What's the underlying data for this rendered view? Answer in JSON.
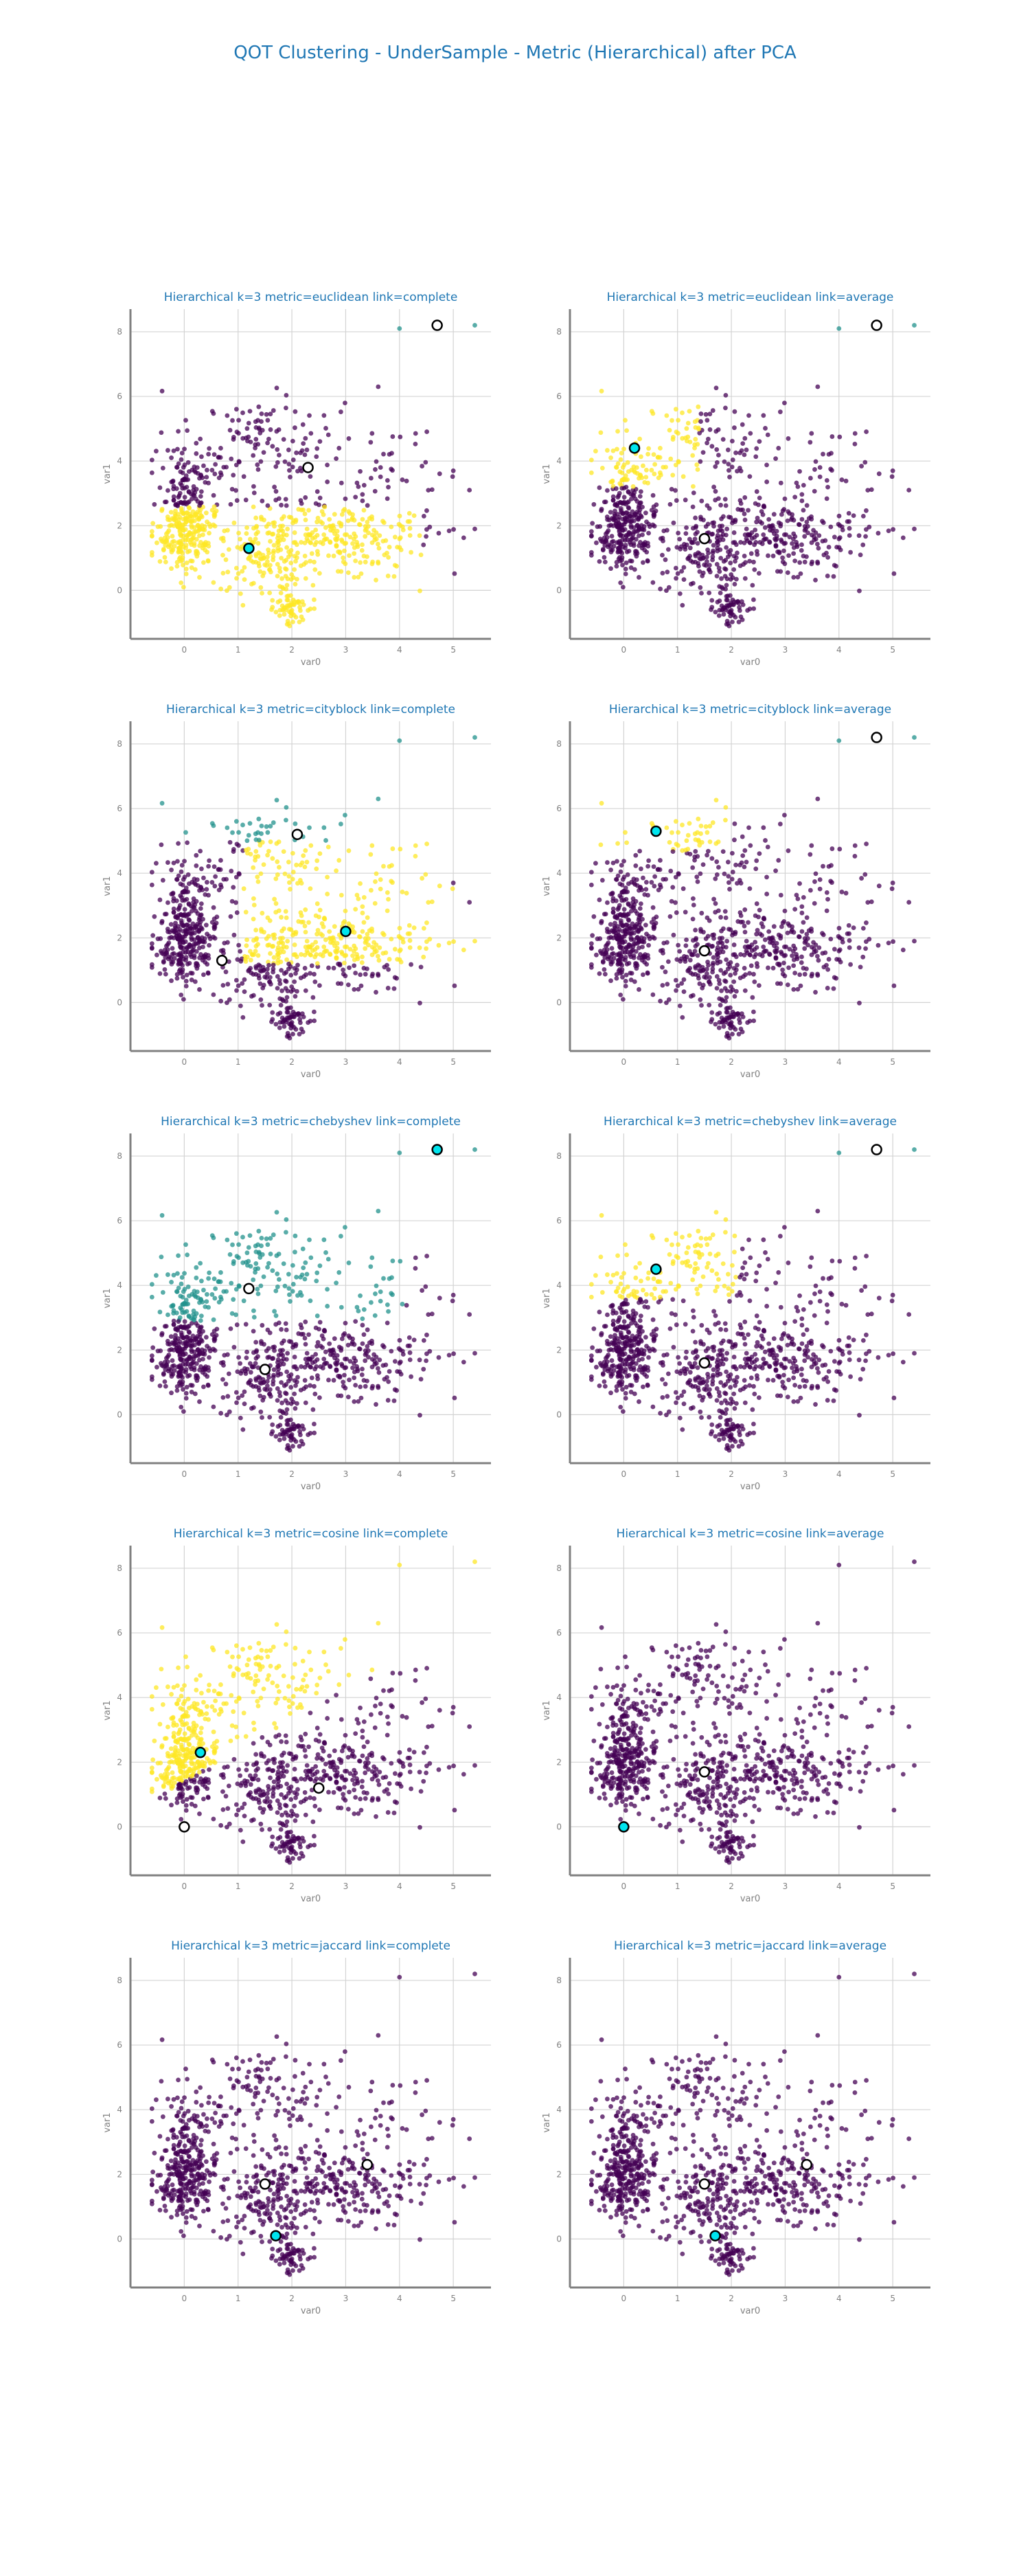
{
  "figure": {
    "title": "QOT Clustering - UnderSample - Metric (Hierarchical) after PCA"
  },
  "palette": {
    "purple": "#440154",
    "teal": "#21918c",
    "yellow": "#fde725",
    "center_cyan": "#00e5ee",
    "center_white": "#ffffff",
    "gridline": "#d3d3d3",
    "axis": "#808080"
  },
  "chart_data": [
    {
      "type": "scatter",
      "title": "Hierarchical k=3 metric=euclidean link=complete",
      "xlabel": "var0",
      "ylabel": "var1",
      "xlim": [
        -1,
        5.7
      ],
      "ylim": [
        -1.5,
        8.7
      ],
      "xticks": [
        0,
        1,
        2,
        3,
        4,
        5
      ],
      "yticks": [
        0,
        2,
        4,
        6,
        8
      ],
      "grid": true,
      "scheme": "euc_complete",
      "centers": [
        {
          "x": 1.2,
          "y": 1.3,
          "color": "cyan"
        },
        {
          "x": 2.3,
          "y": 3.8,
          "color": "white"
        },
        {
          "x": 4.7,
          "y": 8.2,
          "color": "white"
        }
      ]
    },
    {
      "type": "scatter",
      "title": "Hierarchical k=3 metric=euclidean link=average",
      "xlabel": "var0",
      "ylabel": "var1",
      "xlim": [
        -1,
        5.7
      ],
      "ylim": [
        -1.5,
        8.7
      ],
      "xticks": [
        0,
        1,
        2,
        3,
        4,
        5
      ],
      "yticks": [
        0,
        2,
        4,
        6,
        8
      ],
      "grid": true,
      "scheme": "euc_average",
      "centers": [
        {
          "x": 0.2,
          "y": 4.4,
          "color": "cyan"
        },
        {
          "x": 1.5,
          "y": 1.6,
          "color": "white"
        },
        {
          "x": 4.7,
          "y": 8.2,
          "color": "white"
        }
      ]
    },
    {
      "type": "scatter",
      "title": "Hierarchical k=3 metric=cityblock link=complete",
      "xlabel": "var0",
      "ylabel": "var1",
      "xlim": [
        -1,
        5.7
      ],
      "ylim": [
        -1.5,
        8.7
      ],
      "xticks": [
        0,
        1,
        2,
        3,
        4,
        5
      ],
      "yticks": [
        0,
        2,
        4,
        6,
        8
      ],
      "grid": true,
      "scheme": "city_complete",
      "centers": [
        {
          "x": 3.0,
          "y": 2.2,
          "color": "cyan"
        },
        {
          "x": 2.1,
          "y": 5.2,
          "color": "white"
        },
        {
          "x": 0.7,
          "y": 1.3,
          "color": "white"
        }
      ]
    },
    {
      "type": "scatter",
      "title": "Hierarchical k=3 metric=cityblock link=average",
      "xlabel": "var0",
      "ylabel": "var1",
      "xlim": [
        -1,
        5.7
      ],
      "ylim": [
        -1.5,
        8.7
      ],
      "xticks": [
        0,
        1,
        2,
        3,
        4,
        5
      ],
      "yticks": [
        0,
        2,
        4,
        6,
        8
      ],
      "grid": true,
      "scheme": "city_average",
      "centers": [
        {
          "x": 0.6,
          "y": 5.3,
          "color": "cyan"
        },
        {
          "x": 1.5,
          "y": 1.6,
          "color": "white"
        },
        {
          "x": 4.7,
          "y": 8.2,
          "color": "white"
        }
      ]
    },
    {
      "type": "scatter",
      "title": "Hierarchical k=3 metric=chebyshev link=complete",
      "xlabel": "var0",
      "ylabel": "var1",
      "xlim": [
        -1,
        5.7
      ],
      "ylim": [
        -1.5,
        8.7
      ],
      "xticks": [
        0,
        1,
        2,
        3,
        4,
        5
      ],
      "yticks": [
        0,
        2,
        4,
        6,
        8
      ],
      "grid": true,
      "scheme": "cheb_complete",
      "centers": [
        {
          "x": 4.7,
          "y": 8.2,
          "color": "cyan"
        },
        {
          "x": 1.2,
          "y": 3.9,
          "color": "white"
        },
        {
          "x": 1.5,
          "y": 1.4,
          "color": "white"
        }
      ]
    },
    {
      "type": "scatter",
      "title": "Hierarchical k=3 metric=chebyshev link=average",
      "xlabel": "var0",
      "ylabel": "var1",
      "xlim": [
        -1,
        5.7
      ],
      "ylim": [
        -1.5,
        8.7
      ],
      "xticks": [
        0,
        1,
        2,
        3,
        4,
        5
      ],
      "yticks": [
        0,
        2,
        4,
        6,
        8
      ],
      "grid": true,
      "scheme": "cheb_average",
      "centers": [
        {
          "x": 0.6,
          "y": 4.5,
          "color": "cyan"
        },
        {
          "x": 1.5,
          "y": 1.6,
          "color": "white"
        },
        {
          "x": 4.7,
          "y": 8.2,
          "color": "white"
        }
      ]
    },
    {
      "type": "scatter",
      "title": "Hierarchical k=3 metric=cosine link=complete",
      "xlabel": "var0",
      "ylabel": "var1",
      "xlim": [
        -1,
        5.7
      ],
      "ylim": [
        -1.5,
        8.7
      ],
      "xticks": [
        0,
        1,
        2,
        3,
        4,
        5
      ],
      "yticks": [
        0,
        2,
        4,
        6,
        8
      ],
      "grid": true,
      "scheme": "cos_complete",
      "centers": [
        {
          "x": 0.3,
          "y": 2.3,
          "color": "cyan"
        },
        {
          "x": 0.0,
          "y": 0.0,
          "color": "white"
        },
        {
          "x": 2.5,
          "y": 1.2,
          "color": "white"
        }
      ]
    },
    {
      "type": "scatter",
      "title": "Hierarchical k=3 metric=cosine link=average",
      "xlabel": "var0",
      "ylabel": "var1",
      "xlim": [
        -1,
        5.7
      ],
      "ylim": [
        -1.5,
        8.7
      ],
      "xticks": [
        0,
        1,
        2,
        3,
        4,
        5
      ],
      "yticks": [
        0,
        2,
        4,
        6,
        8
      ],
      "grid": true,
      "scheme": "cos_average",
      "centers": [
        {
          "x": 0.0,
          "y": 0.0,
          "color": "cyan"
        },
        {
          "x": 1.5,
          "y": 1.7,
          "color": "white"
        }
      ]
    },
    {
      "type": "scatter",
      "title": "Hierarchical k=3 metric=jaccard link=complete",
      "xlabel": "var0",
      "ylabel": "var1",
      "xlim": [
        -1,
        5.7
      ],
      "ylim": [
        -1.5,
        8.7
      ],
      "xticks": [
        0,
        1,
        2,
        3,
        4,
        5
      ],
      "yticks": [
        0,
        2,
        4,
        6,
        8
      ],
      "grid": true,
      "scheme": "jac",
      "centers": [
        {
          "x": 1.7,
          "y": 0.1,
          "color": "cyan"
        },
        {
          "x": 1.5,
          "y": 1.7,
          "color": "white"
        },
        {
          "x": 3.4,
          "y": 2.3,
          "color": "white"
        }
      ]
    },
    {
      "type": "scatter",
      "title": "Hierarchical k=3 metric=jaccard link=average",
      "xlabel": "var0",
      "ylabel": "var1",
      "xlim": [
        -1,
        5.7
      ],
      "ylim": [
        -1.5,
        8.7
      ],
      "xticks": [
        0,
        1,
        2,
        3,
        4,
        5
      ],
      "yticks": [
        0,
        2,
        4,
        6,
        8
      ],
      "grid": true,
      "scheme": "jac",
      "centers": [
        {
          "x": 1.7,
          "y": 0.1,
          "color": "cyan"
        },
        {
          "x": 1.5,
          "y": 1.7,
          "color": "white"
        },
        {
          "x": 3.4,
          "y": 2.3,
          "color": "white"
        }
      ]
    }
  ]
}
